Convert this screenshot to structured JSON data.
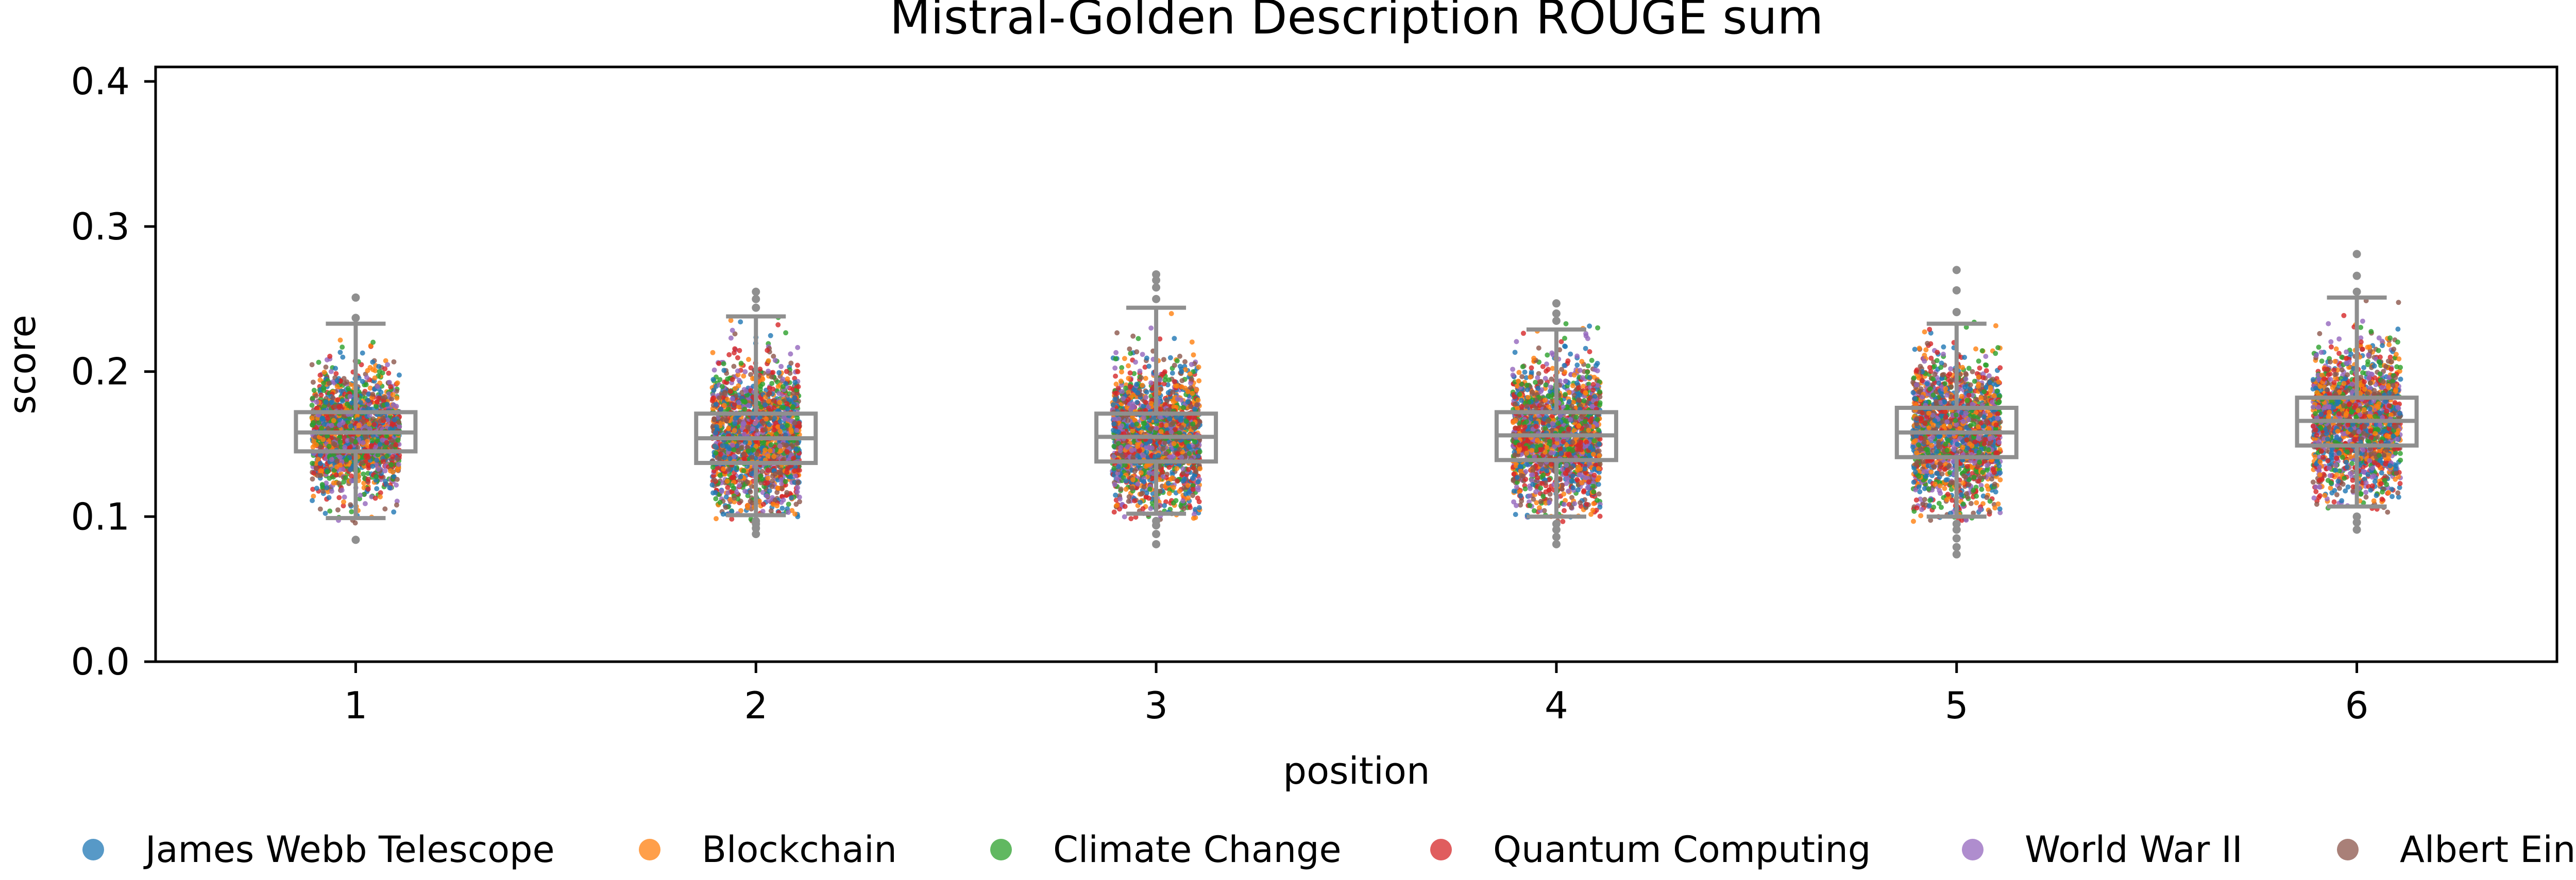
{
  "chart_data": {
    "type": "box-strip",
    "title": "Mistral-Golden Description ROUGE sum",
    "xlabel": "position",
    "ylabel": "score",
    "ylim": [
      0,
      0.41
    ],
    "yticks": [
      "0.0",
      "0.1",
      "0.2",
      "0.3",
      "0.4"
    ],
    "categories": [
      "1",
      "2",
      "3",
      "4",
      "5",
      "6"
    ],
    "legend_position": "bottom",
    "grid": false,
    "series": [
      {
        "name": "James Webb Telescope",
        "color": "#1f77b4"
      },
      {
        "name": "Blockchain",
        "color": "#ff7f0e"
      },
      {
        "name": "Climate Change",
        "color": "#2ca02c"
      },
      {
        "name": "Quantum Computing",
        "color": "#d62728"
      },
      {
        "name": "World War II",
        "color": "#9467bd"
      },
      {
        "name": "Albert Einstein",
        "color": "#8c564b"
      }
    ],
    "boxes": [
      {
        "position": "1",
        "whisker_low": 0.099,
        "q1": 0.145,
        "median": 0.158,
        "q3": 0.172,
        "whisker_high": 0.233,
        "outliers": [
          0.084,
          0.237,
          0.251
        ]
      },
      {
        "position": "2",
        "whisker_low": 0.101,
        "q1": 0.137,
        "median": 0.154,
        "q3": 0.171,
        "whisker_high": 0.238,
        "outliers": [
          0.088,
          0.092,
          0.095,
          0.097,
          0.244,
          0.25,
          0.255
        ]
      },
      {
        "position": "3",
        "whisker_low": 0.102,
        "q1": 0.138,
        "median": 0.155,
        "q3": 0.171,
        "whisker_high": 0.244,
        "outliers": [
          0.081,
          0.088,
          0.094,
          0.097,
          0.25,
          0.258,
          0.263,
          0.267
        ]
      },
      {
        "position": "4",
        "whisker_low": 0.1,
        "q1": 0.139,
        "median": 0.156,
        "q3": 0.172,
        "whisker_high": 0.229,
        "outliers": [
          0.081,
          0.086,
          0.091,
          0.095,
          0.235,
          0.24,
          0.247
        ]
      },
      {
        "position": "5",
        "whisker_low": 0.1,
        "q1": 0.141,
        "median": 0.158,
        "q3": 0.175,
        "whisker_high": 0.233,
        "outliers": [
          0.074,
          0.079,
          0.085,
          0.091,
          0.095,
          0.241,
          0.256,
          0.27
        ]
      },
      {
        "position": "6",
        "whisker_low": 0.107,
        "q1": 0.149,
        "median": 0.166,
        "q3": 0.182,
        "whisker_high": 0.251,
        "outliers": [
          0.091,
          0.096,
          0.1,
          0.255,
          0.266,
          0.281
        ]
      }
    ]
  }
}
